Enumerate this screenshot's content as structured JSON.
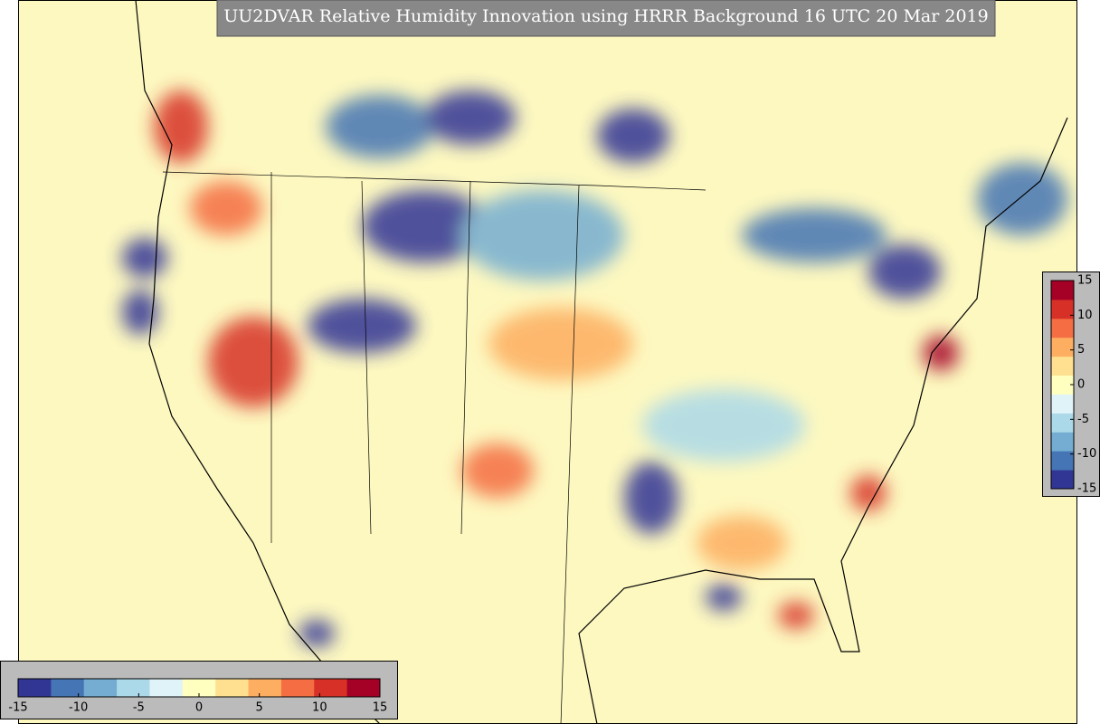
{
  "title": "UU2DVAR Relative Humidity Innovation using HRRR Background 16 UTC 20 Mar 2019",
  "colorbar": {
    "lim": [
      -15,
      15
    ],
    "ticks": [
      -15,
      -10,
      -5,
      0,
      5,
      10,
      15
    ],
    "colors": [
      "#313695",
      "#4575b4",
      "#74add1",
      "#abd9e9",
      "#e0f3f8",
      "#ffffbf",
      "#fee090",
      "#fdae61",
      "#f46d43",
      "#d73027",
      "#a50026"
    ]
  }
}
